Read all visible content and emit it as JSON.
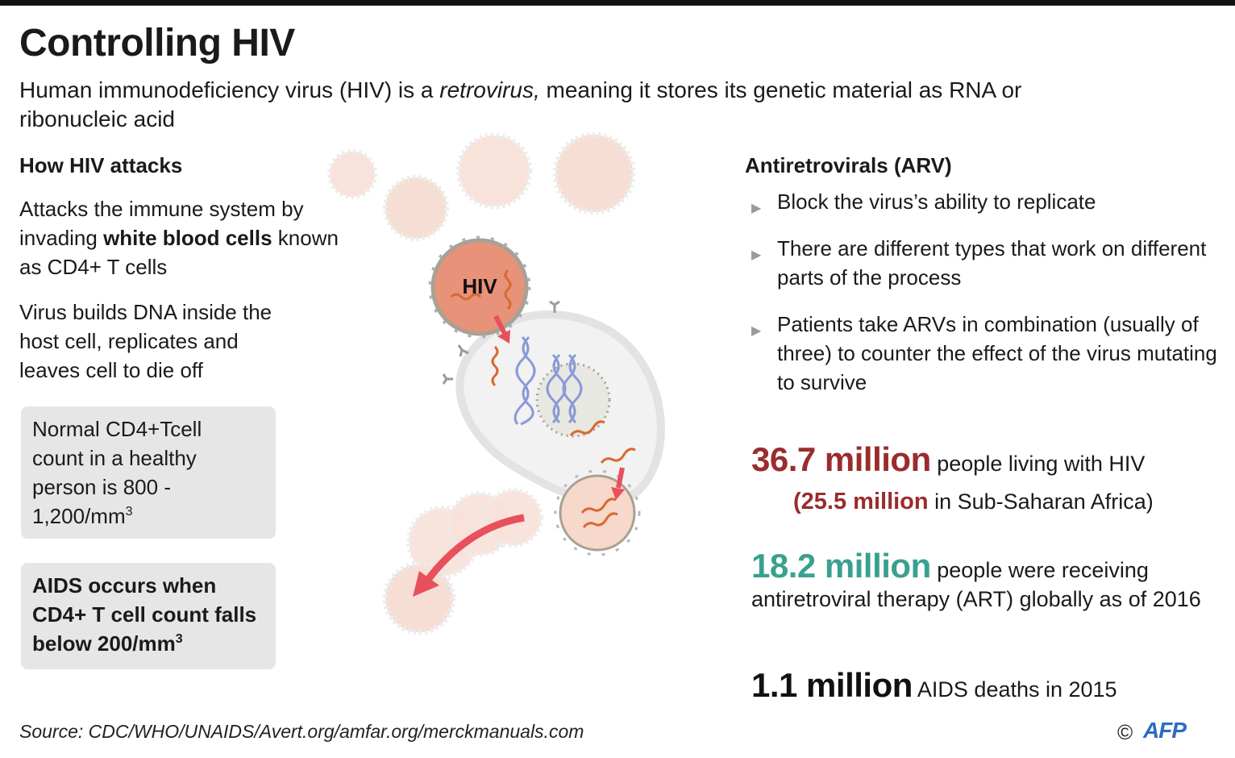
{
  "title": "Controlling HIV",
  "subtitle": {
    "before": "Human immunodeficiency virus (HIV) is a ",
    "italic": "retrovirus,",
    "after": " meaning it stores its genetic material as RNA or ribonucleic acid"
  },
  "left": {
    "heading": "How HIV attacks",
    "p1_before": "Attacks the immune system by invading ",
    "p1_bold": "white blood cells",
    "p1_after": " known as CD4+ T cells",
    "p2": "Virus builds DNA inside the host cell, replicates and leaves cell to die off",
    "box1_text": "Normal CD4+Tcell count in a healthy person is 800 - 1,200/mm",
    "box1_sup": "3",
    "box2_text": "AIDS occurs when CD4+ T cell count falls below 200/mm",
    "box2_sup": "3"
  },
  "diagram": {
    "virus_label": "HIV"
  },
  "right": {
    "heading": "Antiretrovirals (ARV)",
    "bullet_icon": "triangle-right-icon",
    "bullets": [
      "Block the virus’s ability to replicate",
      "There are different types that work on different parts of the process",
      "Patients take ARVs in combination (usually of three) to counter the effect of the virus mutating to survive"
    ]
  },
  "stats": {
    "s1_value": "36.7 million",
    "s1_text": " people living with HIV",
    "s1_sub_open": "(",
    "s1_sub_value": "25.5 million",
    "s1_sub_text": " in Sub-Saharan Africa)",
    "s2_value": "18.2 million",
    "s2_text": " people were receiving antiretroviral therapy (ART) globally as of 2016",
    "s3_value": "1.1 million",
    "s3_text": " AIDS deaths in 2015"
  },
  "footer": {
    "source": "Source: CDC/WHO/UNAIDS/Avert.org/amfar.org/merckmanuals.com",
    "copyright": "©",
    "logo_text": "AFP"
  },
  "colors": {
    "red_stat": "#9b2c2c",
    "teal_stat": "#3aa08f",
    "virus_fill": "#e8927a",
    "arrow": "#e8505b",
    "dna": "#8a9ad6",
    "rna": "#d9692f"
  }
}
